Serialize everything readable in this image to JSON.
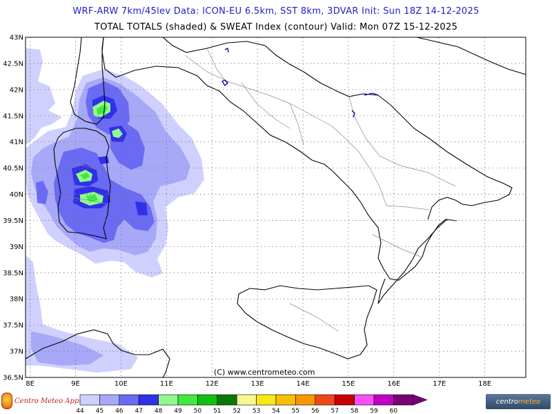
{
  "title_line1": "WRF-ARW 7km/45lev  Data: ICON-EU 6.5km, SST 8km, 3DVAR  Init: Sun 18Z 14-12-2025",
  "title_line2": "TOTAL TOTALS (shaded) & SWEAT Index (contour)  Valid: Mon 07Z 15-12-2025",
  "copyright": "(C) www.centrometeo.com",
  "logo_left_text": "Centro Meteo Appulo",
  "logo_right_text_a": "centro",
  "logo_right_text_b": "meteo",
  "latitude_labels": [
    "43N",
    "42.5N",
    "42N",
    "41.5N",
    "41N",
    "40.5N",
    "40N",
    "39.5N",
    "39N",
    "38.5N",
    "38N",
    "37.5N",
    "37N",
    "36.5N"
  ],
  "latitude_values": [
    43,
    42.5,
    42,
    41.5,
    41,
    40.5,
    40,
    39.5,
    39,
    38.5,
    38,
    37.5,
    37,
    36.5
  ],
  "longitude_labels": [
    "8E",
    "9E",
    "10E",
    "11E",
    "12E",
    "13E",
    "14E",
    "15E",
    "16E",
    "17E",
    "18E"
  ],
  "longitude_values": [
    8,
    9,
    10,
    11,
    12,
    13,
    14,
    15,
    16,
    17,
    18
  ],
  "map_extent": {
    "lon_min": 7.9,
    "lon_max": 18.9,
    "lat_min": 36.5,
    "lat_max": 43
  },
  "legend": {
    "labels": [
      "44",
      "45",
      "46",
      "47",
      "48",
      "49",
      "50",
      "51",
      "52",
      "53",
      "54",
      "55",
      "56",
      "57",
      "58",
      "59",
      "60"
    ],
    "colors": [
      "#d0d0ff",
      "#a8a8f8",
      "#6a6af2",
      "#3030e8",
      "#90f890",
      "#40e840",
      "#10c010",
      "#087808",
      "#f8f890",
      "#f8e818",
      "#f8c000",
      "#f89800",
      "#f04818",
      "#c80000",
      "#f850f8",
      "#c000c0",
      "#780078"
    ],
    "arrow_color": "#780078"
  }
}
